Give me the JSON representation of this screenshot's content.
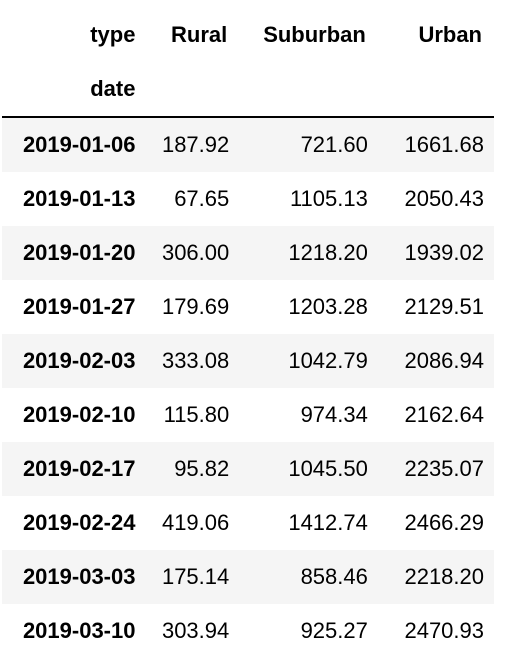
{
  "table": {
    "columns_name": "type",
    "index_name": "date",
    "columns": [
      "Rural",
      "Suburban",
      "Urban"
    ],
    "rows": [
      {
        "index": "2019-01-06",
        "values": [
          "187.92",
          "721.60",
          "1661.68"
        ]
      },
      {
        "index": "2019-01-13",
        "values": [
          "67.65",
          "1105.13",
          "2050.43"
        ]
      },
      {
        "index": "2019-01-20",
        "values": [
          "306.00",
          "1218.20",
          "1939.02"
        ]
      },
      {
        "index": "2019-01-27",
        "values": [
          "179.69",
          "1203.28",
          "2129.51"
        ]
      },
      {
        "index": "2019-02-03",
        "values": [
          "333.08",
          "1042.79",
          "2086.94"
        ]
      },
      {
        "index": "2019-02-10",
        "values": [
          "115.80",
          "974.34",
          "2162.64"
        ]
      },
      {
        "index": "2019-02-17",
        "values": [
          "95.82",
          "1045.50",
          "2235.07"
        ]
      },
      {
        "index": "2019-02-24",
        "values": [
          "419.06",
          "1412.74",
          "2466.29"
        ]
      },
      {
        "index": "2019-03-03",
        "values": [
          "175.14",
          "858.46",
          "2218.20"
        ]
      },
      {
        "index": "2019-03-10",
        "values": [
          "303.94",
          "925.27",
          "2470.93"
        ]
      }
    ]
  }
}
